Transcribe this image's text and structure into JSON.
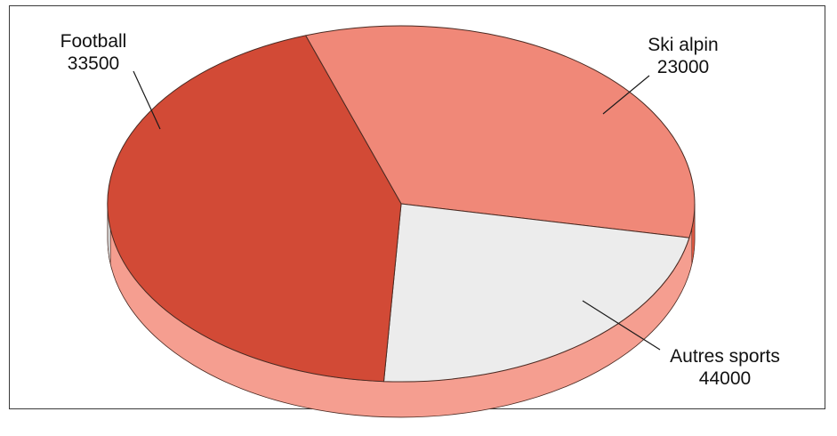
{
  "chart_data": {
    "type": "pie",
    "title": "",
    "style": "3d-tilted",
    "slices": [
      {
        "label": "Football",
        "value_label": "33500",
        "value": 33500,
        "color": "#f08878"
      },
      {
        "label": "Ski alpin",
        "value_label": "23000",
        "value": 23000,
        "color": "#ececec"
      },
      {
        "label": "Autres sports",
        "value_label": "44000",
        "value": 44000,
        "color": "#d24a36"
      }
    ]
  },
  "colors": {
    "frame": "#3a3a3a",
    "side_light": "#f59e90",
    "side_dark": "#d7d7d7",
    "outline": "#4a2a22"
  }
}
